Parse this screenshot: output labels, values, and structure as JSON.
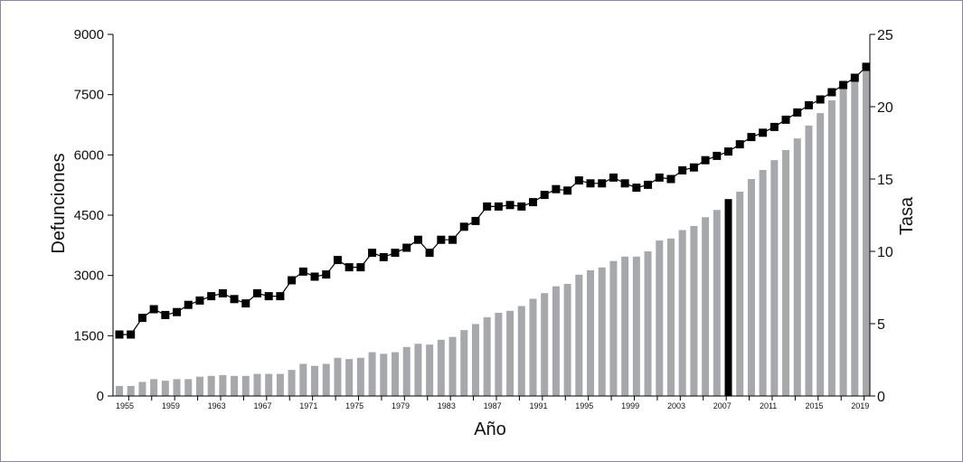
{
  "chart_data": {
    "type": "bar+line",
    "title": "",
    "xlabel": "Año",
    "ylabel": "Defunciones",
    "y2label": "Tasa",
    "ylim": [
      0,
      9000
    ],
    "y2lim": [
      0,
      25
    ],
    "yticks": [
      0,
      1500,
      3000,
      4500,
      6000,
      7500,
      9000
    ],
    "y2ticks": [
      0,
      5,
      10,
      15,
      20,
      25
    ],
    "xtick_labels": [
      "1955",
      "1959",
      "1963",
      "1967",
      "1971",
      "1975",
      "1979",
      "1983",
      "1987",
      "1991",
      "1995",
      "1999",
      "2003",
      "2007",
      "2011",
      "2015",
      "2019"
    ],
    "grid": false,
    "highlight_year": 2008,
    "colors": {
      "bar": "#a7a8ac",
      "highlight": "#000000",
      "line": "#000000"
    },
    "years": [
      1955,
      1956,
      1957,
      1958,
      1959,
      1960,
      1961,
      1962,
      1963,
      1964,
      1965,
      1966,
      1967,
      1968,
      1969,
      1970,
      1971,
      1972,
      1973,
      1974,
      1975,
      1976,
      1977,
      1978,
      1979,
      1980,
      1981,
      1982,
      1983,
      1984,
      1985,
      1986,
      1987,
      1988,
      1989,
      1990,
      1991,
      1992,
      1993,
      1994,
      1995,
      1996,
      1997,
      1998,
      1999,
      2000,
      2001,
      2002,
      2003,
      2004,
      2005,
      2006,
      2007,
      2008,
      2009,
      2010,
      2011,
      2012,
      2013,
      2014,
      2015,
      2016,
      2017,
      2018,
      2019,
      2020
    ],
    "series": [
      {
        "name": "Defunciones",
        "type": "bar",
        "axis": "left",
        "values": [
          250,
          250,
          350,
          420,
          380,
          420,
          420,
          480,
          500,
          520,
          500,
          500,
          550,
          550,
          550,
          650,
          800,
          750,
          800,
          950,
          920,
          950,
          1090,
          1050,
          1090,
          1220,
          1300,
          1280,
          1400,
          1470,
          1640,
          1790,
          1960,
          2070,
          2120,
          2240,
          2420,
          2560,
          2730,
          2790,
          3020,
          3130,
          3200,
          3360,
          3470,
          3470,
          3600,
          3870,
          3920,
          4130,
          4230,
          4450,
          4630,
          4900,
          5085,
          5400,
          5625,
          5870,
          6120,
          6410,
          6730,
          7040,
          7360,
          7650,
          7965,
          8300
        ]
      },
      {
        "name": "Tasa",
        "type": "line",
        "axis": "right",
        "values": [
          4.25,
          4.25,
          5.4,
          6.0,
          5.6,
          5.8,
          6.3,
          6.6,
          6.9,
          7.1,
          6.7,
          6.4,
          7.1,
          6.9,
          6.9,
          8.0,
          8.6,
          8.25,
          8.4,
          9.4,
          8.9,
          8.9,
          9.9,
          9.6,
          9.9,
          10.25,
          10.8,
          9.9,
          10.8,
          10.8,
          11.7,
          12.1,
          13.1,
          13.1,
          13.2,
          13.1,
          13.4,
          13.9,
          14.3,
          14.2,
          14.9,
          14.7,
          14.7,
          15.1,
          14.7,
          14.4,
          14.6,
          15.1,
          15.0,
          15.6,
          15.8,
          16.3,
          16.6,
          16.9,
          17.4,
          17.9,
          18.2,
          18.6,
          19.1,
          19.6,
          20.1,
          20.5,
          21.0,
          21.5,
          22.0,
          22.75
        ]
      }
    ]
  }
}
